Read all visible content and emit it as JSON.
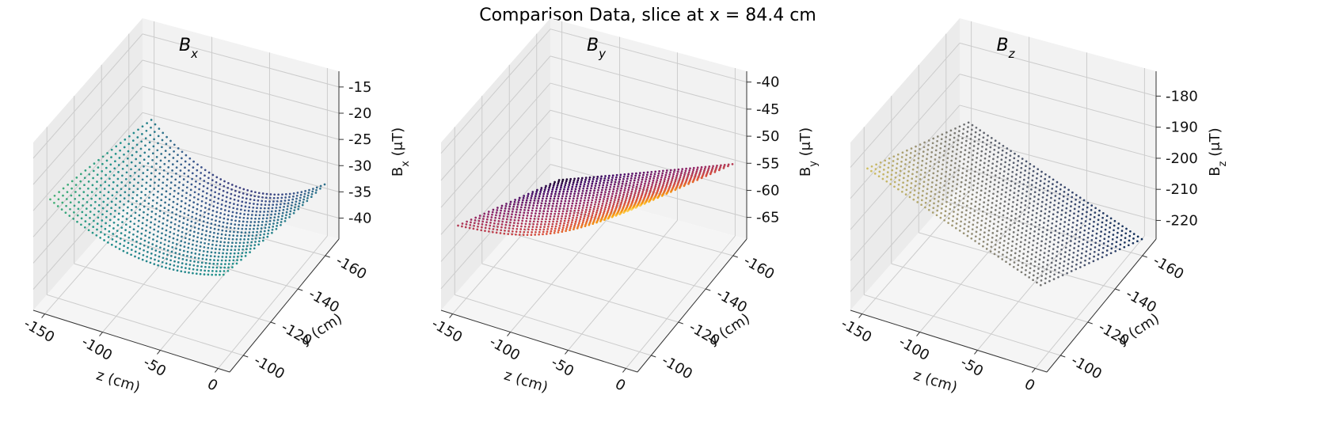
{
  "figure": {
    "title": "Comparison Data, slice at x = 84.4 cm"
  },
  "chart_data": [
    {
      "type": "scatter3d",
      "title": "B",
      "title_sub": "x",
      "xlabel": "z (cm)",
      "ylabel": "y (cm)",
      "zlabel_main": "B",
      "zlabel_sub": "x",
      "zlabel_unit": " (μT)",
      "x_ticks": [
        "-150",
        "-100",
        "-50",
        "0"
      ],
      "y_ticks": [
        "-100",
        "-120",
        "-140",
        "-160"
      ],
      "z_ticks": [
        "-15",
        "-20",
        "-25",
        "-30",
        "-35",
        "-40"
      ],
      "xlim": [
        -160,
        10
      ],
      "ylim": [
        -170,
        -90
      ],
      "zlim": [
        -44,
        -12
      ],
      "colormap": "viridis",
      "surface": "bowl",
      "note": "scatter of measured field points on a y-z grid; minimum near z ≈ -70 cm, y ≈ -100 cm"
    },
    {
      "type": "scatter3d",
      "title": "B",
      "title_sub": "y",
      "xlabel": "z (cm)",
      "ylabel": "y (cm)",
      "zlabel_main": "B",
      "zlabel_sub": "y",
      "zlabel_unit": " (μT)",
      "x_ticks": [
        "-150",
        "-100",
        "-50",
        "0"
      ],
      "y_ticks": [
        "-100",
        "-120",
        "-140",
        "-160"
      ],
      "z_ticks": [
        "-40",
        "-45",
        "-50",
        "-55",
        "-60",
        "-65"
      ],
      "xlim": [
        -160,
        10
      ],
      "ylim": [
        -170,
        -90
      ],
      "zlim": [
        -69,
        -38
      ],
      "colormap": "inferno",
      "surface": "ramp",
      "note": "rises from about -67 at z = -150, y = -170 to about -41 at z = 0, y = -95"
    },
    {
      "type": "scatter3d",
      "title": "B",
      "title_sub": "z",
      "xlabel": "z (cm)",
      "ylabel": "y (cm)",
      "zlabel_main": "B",
      "zlabel_sub": "z",
      "zlabel_unit": " (μT)",
      "x_ticks": [
        "-150",
        "-100",
        "-50",
        "0"
      ],
      "y_ticks": [
        "-100",
        "-120",
        "-140",
        "-160"
      ],
      "z_ticks": [
        "-180",
        "-190",
        "-200",
        "-210",
        "-220"
      ],
      "xlim": [
        -160,
        10
      ],
      "ylim": [
        -170,
        -90
      ],
      "zlim": [
        -226,
        -172
      ],
      "colormap": "cividis",
      "surface": "plane",
      "note": "roughly planar, from about -175 at z = -150, y = -90 down to about -225 at z = 0, y = -170"
    }
  ]
}
